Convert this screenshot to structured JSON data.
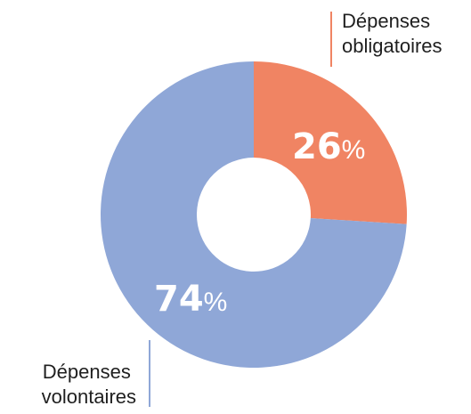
{
  "chart_data": {
    "type": "pie",
    "donut": true,
    "categories": [
      "Dépenses obligatoires",
      "Dépenses volontaires"
    ],
    "values": [
      26,
      74
    ],
    "unit": "%",
    "colors": [
      "#f08463",
      "#8fa7d7"
    ],
    "labels": {
      "obligatoires": [
        "Dépenses",
        "obligatoires"
      ],
      "volontaires": [
        "Dépenses",
        "volontaires"
      ]
    },
    "value_labels": [
      "26",
      "74"
    ],
    "percent_sign": "%"
  }
}
